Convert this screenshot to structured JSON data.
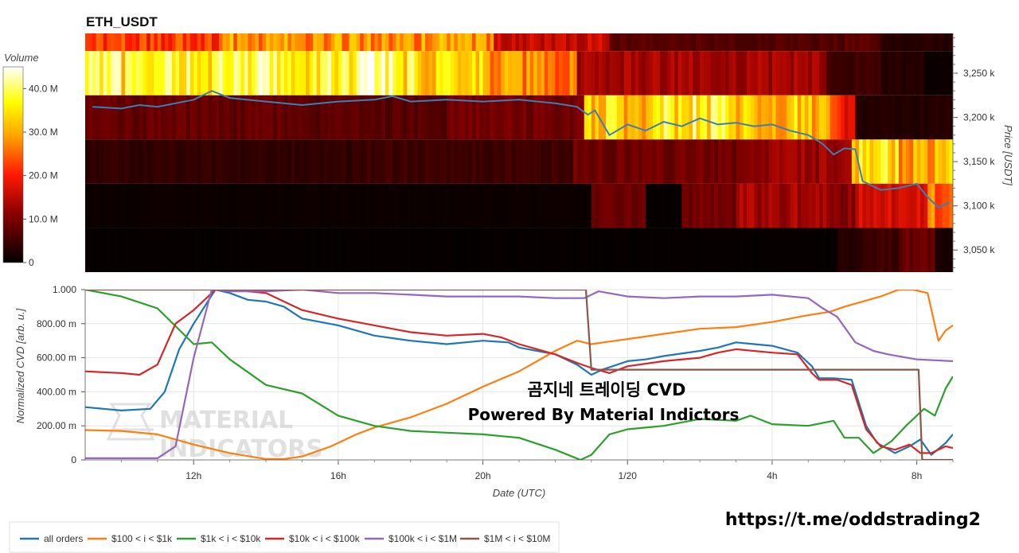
{
  "header": {
    "title": "ETH_USDT"
  },
  "watermark": {
    "line1": "MATERIAL",
    "line2": "INDICATORS"
  },
  "annotation": {
    "line1": "곰지네 트레이딩 CVD",
    "line2": "Powered By Material Indictors"
  },
  "footer": {
    "url": "https://t.me/oddstrading2"
  },
  "colors": {
    "price": "#3a7fb5",
    "grid": "#e6e6e6"
  },
  "chart_data": [
    {
      "type": "heatmap",
      "title": "ETH_USDT",
      "ylabel": "Price [USDT]",
      "ylim": [
        3025,
        3295
      ],
      "y_ticks": [
        {
          "v": 3250,
          "label": "3,250 k"
        },
        {
          "v": 3200,
          "label": "3,200 k"
        },
        {
          "v": 3150,
          "label": "3,150 k"
        },
        {
          "v": 3100,
          "label": "3,100 k"
        },
        {
          "v": 3050,
          "label": "3,050 k"
        }
      ],
      "colorbar": {
        "label": "Volume",
        "range": [
          0,
          45
        ],
        "ticks": [
          {
            "v": 40,
            "label": "40.0 M"
          },
          {
            "v": 30,
            "label": "30.0 M"
          },
          {
            "v": 20,
            "label": "20.0 M"
          },
          {
            "v": 10,
            "label": "10.0 M"
          },
          {
            "v": 0,
            "label": "0"
          }
        ]
      },
      "price_levels": [
        3287.5,
        3262.5,
        3212.5,
        3162.5,
        3112.5,
        3062.5
      ],
      "level_low_bounds": [
        3275,
        3225,
        3175,
        3125,
        3075,
        3025
      ],
      "level_high_bounds": [
        3295,
        3275,
        3225,
        3175,
        3125,
        3075
      ],
      "level_segments": [
        [
          [
            9.0,
            12.8,
            22
          ],
          [
            12.8,
            20.3,
            28
          ],
          [
            20.3,
            23.5,
            16
          ],
          [
            23.5,
            31.0,
            7
          ],
          [
            31.0,
            33.0,
            3
          ]
        ],
        [
          [
            9.0,
            12.5,
            36
          ],
          [
            12.5,
            13.0,
            44
          ],
          [
            13.0,
            16.5,
            38
          ],
          [
            16.5,
            17.5,
            43
          ],
          [
            17.5,
            20.0,
            35
          ],
          [
            20.0,
            22.6,
            27
          ],
          [
            22.6,
            29.5,
            13
          ],
          [
            29.5,
            31.0,
            5
          ],
          [
            31.0,
            32.2,
            3
          ],
          [
            32.2,
            33.0,
            1
          ]
        ],
        [
          [
            9.0,
            15.0,
            8
          ],
          [
            15.0,
            19.0,
            7
          ],
          [
            19.0,
            22.8,
            9
          ],
          [
            22.8,
            25.0,
            33
          ],
          [
            25.0,
            27.0,
            36
          ],
          [
            27.0,
            29.6,
            32
          ],
          [
            29.6,
            30.3,
            20
          ],
          [
            30.3,
            33.0,
            3
          ]
        ],
        [
          [
            9.0,
            16.5,
            4
          ],
          [
            16.5,
            22.5,
            5
          ],
          [
            22.5,
            27.0,
            9
          ],
          [
            27.0,
            30.2,
            12
          ],
          [
            30.2,
            31.5,
            34
          ],
          [
            31.5,
            33.0,
            30
          ]
        ],
        [
          [
            9.0,
            23.0,
            1
          ],
          [
            23.0,
            24.5,
            9
          ],
          [
            24.5,
            25.5,
            0.5
          ],
          [
            25.5,
            27.0,
            9
          ],
          [
            27.0,
            29.6,
            13
          ],
          [
            29.6,
            30.3,
            11
          ],
          [
            30.3,
            32.3,
            16
          ],
          [
            32.3,
            33.0,
            26
          ]
        ],
        [
          [
            9.0,
            29.8,
            0.5
          ],
          [
            29.8,
            30.5,
            3
          ],
          [
            30.5,
            31.5,
            5
          ],
          [
            31.5,
            32.5,
            8
          ],
          [
            32.5,
            33.0,
            2
          ]
        ]
      ],
      "price_series": {
        "name": "ETH_USDT",
        "x": [
          9.2,
          10,
          10.5,
          11,
          11.5,
          12,
          12.5,
          13,
          14,
          15,
          16,
          17,
          17.5,
          18,
          19,
          20,
          21,
          22,
          22.6,
          22.9,
          23.1,
          23.5,
          24,
          24.5,
          25,
          25.5,
          26,
          26.5,
          27,
          27.5,
          28,
          28.5,
          29,
          29.4,
          29.7,
          30,
          30.3,
          30.5,
          31,
          31.5,
          32,
          32.3,
          32.6,
          32.9
        ],
        "y": [
          3212,
          3210,
          3214,
          3212,
          3216,
          3220,
          3230,
          3222,
          3218,
          3214,
          3218,
          3220,
          3224,
          3218,
          3220,
          3218,
          3220,
          3216,
          3212,
          3203,
          3208,
          3180,
          3192,
          3185,
          3195,
          3190,
          3199,
          3192,
          3194,
          3190,
          3192,
          3185,
          3180,
          3170,
          3158,
          3165,
          3164,
          3128,
          3118,
          3120,
          3125,
          3110,
          3098,
          3104
        ]
      }
    },
    {
      "type": "line",
      "xlabel": "Date (UTC)",
      "ylabel": "Normalized CVD [arb. u.]",
      "xlim": [
        9.0,
        33.0
      ],
      "ylim": [
        0,
        1000
      ],
      "x_ticks": [
        {
          "v": 12,
          "label": "12h"
        },
        {
          "v": 16,
          "label": "16h"
        },
        {
          "v": 20,
          "label": "20h"
        },
        {
          "v": 24,
          "label": "1/20"
        },
        {
          "v": 28,
          "label": "4h"
        },
        {
          "v": 32,
          "label": "8h"
        }
      ],
      "y_ticks": [
        {
          "v": 1000,
          "label": "1.000"
        },
        {
          "v": 800,
          "label": "800.00 m"
        },
        {
          "v": 600,
          "label": "600.00 m"
        },
        {
          "v": 400,
          "label": "400.00 m"
        },
        {
          "v": 200,
          "label": "200.00 m"
        },
        {
          "v": 0,
          "label": "0"
        }
      ],
      "series": [
        {
          "name": "all orders",
          "color": "#1f77b4",
          "x": [
            9.0,
            10,
            10.8,
            11.2,
            11.6,
            12,
            12.6,
            13,
            13.5,
            14,
            14.5,
            15,
            16,
            17,
            18,
            19,
            20,
            20.7,
            21,
            22,
            22.6,
            23.0,
            23.3,
            24,
            24.5,
            25,
            26,
            26.5,
            27,
            27.5,
            28,
            28.7,
            29.1,
            29.3,
            29.7,
            30.2,
            30.6,
            30.9,
            31.4,
            31.8,
            32.1,
            32.4,
            32.8,
            33.0
          ],
          "y": [
            310,
            290,
            300,
            400,
            650,
            800,
            1000,
            980,
            940,
            930,
            900,
            830,
            790,
            730,
            700,
            680,
            700,
            690,
            660,
            620,
            560,
            500,
            530,
            580,
            590,
            610,
            640,
            660,
            690,
            680,
            670,
            630,
            550,
            480,
            480,
            470,
            200,
            100,
            40,
            80,
            120,
            30,
            100,
            150
          ]
        },
        {
          "name": "$100 < i < $1k",
          "color": "#ff7f0e",
          "x": [
            9.0,
            10,
            11,
            12,
            13,
            14,
            14.5,
            15,
            15.8,
            16.5,
            17,
            18,
            19,
            20,
            21,
            22,
            22.6,
            23,
            24,
            25,
            26,
            27,
            28,
            29,
            29.6,
            30,
            31,
            31.5,
            31.9,
            32.3,
            32.6,
            32.8,
            33.0
          ],
          "y": [
            175,
            170,
            150,
            90,
            40,
            5,
            5,
            20,
            80,
            150,
            190,
            250,
            330,
            430,
            520,
            640,
            700,
            680,
            710,
            740,
            770,
            780,
            810,
            850,
            870,
            900,
            960,
            1000,
            1000,
            980,
            700,
            760,
            790
          ]
        },
        {
          "name": "$1k < i < $10k",
          "color": "#2ca02c",
          "x": [
            9.0,
            10,
            11,
            12,
            12.5,
            13,
            14,
            15,
            16,
            17,
            18,
            19,
            20,
            21,
            22,
            22.7,
            23,
            23.5,
            24,
            25,
            26,
            27,
            27.4,
            28,
            29,
            29.7,
            30,
            30.4,
            30.8,
            31.3,
            31.7,
            32.2,
            32.5,
            32.8,
            33.0
          ],
          "y": [
            1000,
            960,
            890,
            680,
            690,
            590,
            440,
            390,
            260,
            200,
            170,
            160,
            150,
            130,
            60,
            0,
            30,
            150,
            180,
            200,
            240,
            230,
            260,
            210,
            200,
            230,
            130,
            130,
            40,
            110,
            200,
            300,
            260,
            420,
            490
          ]
        },
        {
          "name": "$10k < i < $100k",
          "color": "#d62728",
          "x": [
            9.0,
            10,
            10.5,
            11,
            11.5,
            12,
            12.6,
            13,
            13.5,
            14,
            15,
            16,
            17,
            18,
            19,
            20,
            20.5,
            21,
            22,
            22.6,
            23,
            23.5,
            24,
            25,
            26,
            26.5,
            27,
            28,
            28.7,
            29.1,
            29.3,
            29.8,
            30.2,
            30.6,
            31.0,
            31.4,
            31.8,
            32.1,
            32.4,
            32.8,
            33.0
          ],
          "y": [
            520,
            510,
            500,
            560,
            800,
            880,
            1000,
            1000,
            990,
            980,
            880,
            830,
            790,
            750,
            730,
            740,
            720,
            680,
            620,
            570,
            540,
            510,
            550,
            580,
            600,
            630,
            650,
            630,
            620,
            510,
            470,
            470,
            440,
            180,
            80,
            60,
            90,
            40,
            40,
            80,
            70
          ]
        },
        {
          "name": "$100k < i < $1M",
          "color": "#9467bd",
          "x": [
            9.0,
            10,
            11,
            11.5,
            12,
            12.5,
            13,
            14,
            15,
            16,
            17,
            18,
            19,
            20,
            21,
            22,
            22.8,
            23.2,
            24,
            25,
            26,
            27,
            28,
            29,
            29.4,
            29.8,
            30.3,
            30.8,
            31.2,
            32,
            33.0
          ],
          "y": [
            10,
            10,
            10,
            80,
            600,
            1000,
            990,
            990,
            1000,
            980,
            980,
            970,
            960,
            960,
            960,
            950,
            950,
            990,
            960,
            950,
            960,
            960,
            970,
            950,
            890,
            840,
            690,
            640,
            620,
            590,
            580
          ]
        },
        {
          "name": "$1M < i < $10M",
          "color": "#8c564b",
          "x": [
            9.0,
            22.85,
            23.0,
            23.4,
            32.0,
            32.05,
            32.15,
            33.0
          ],
          "y": [
            1000,
            1000,
            530,
            530,
            530,
            530,
            0,
            0
          ]
        }
      ]
    }
  ]
}
